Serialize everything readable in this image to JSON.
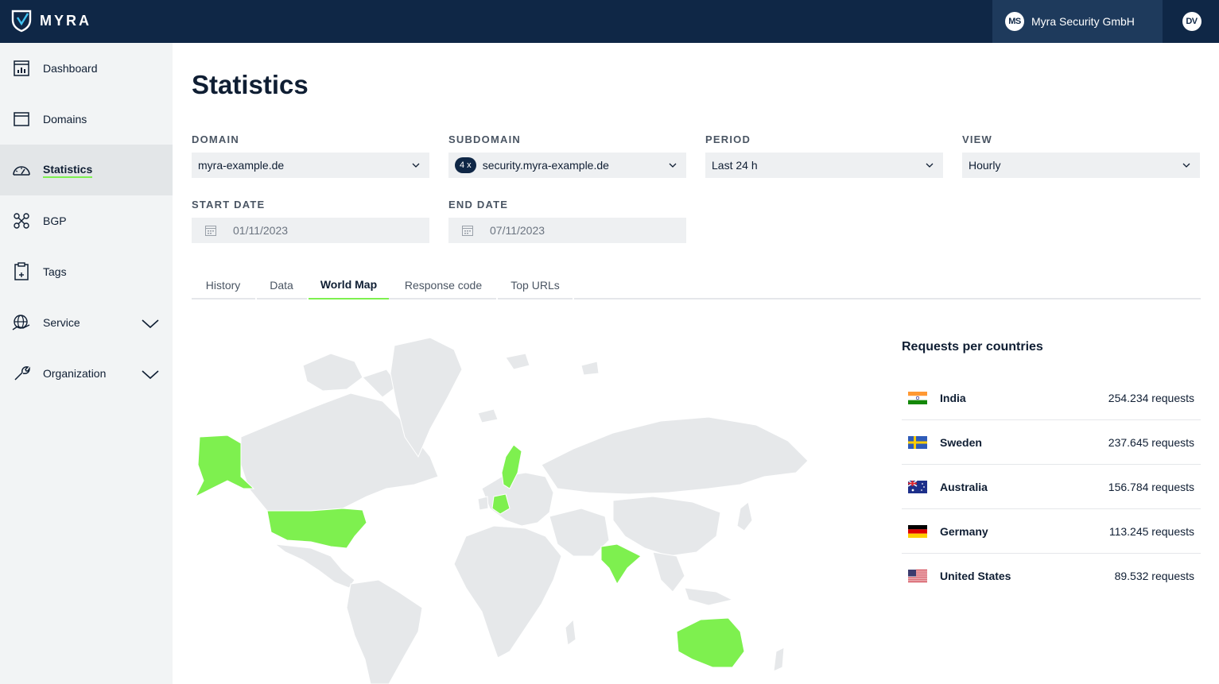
{
  "header": {
    "brand": "MYRA",
    "org": {
      "initials": "MS",
      "name": "Myra Security GmbH"
    },
    "user": {
      "initials": "DV"
    }
  },
  "sidebar": {
    "items": [
      {
        "label": "Dashboard",
        "icon": "dashboard-icon",
        "active": false
      },
      {
        "label": "Domains",
        "icon": "domains-icon",
        "active": false
      },
      {
        "label": "Statistics",
        "icon": "statistics-gauge-icon",
        "active": true
      },
      {
        "label": "BGP",
        "icon": "bgp-network-icon",
        "active": false
      },
      {
        "label": "Tags",
        "icon": "tags-clipboard-icon",
        "active": false
      },
      {
        "label": "Service",
        "icon": "service-globe-icon",
        "active": false,
        "expandable": true
      },
      {
        "label": "Organization",
        "icon": "organization-wrench-icon",
        "active": false,
        "expandable": true
      }
    ]
  },
  "main": {
    "title": "Statistics",
    "filters": {
      "domain": {
        "label": "Domain",
        "value": "myra-example.de"
      },
      "subdomain": {
        "label": "Subdomain",
        "count_badge": "4 x",
        "value": "security.myra-example.de"
      },
      "period": {
        "label": "Period",
        "value": "Last 24 h"
      },
      "view": {
        "label": "View",
        "value": "Hourly"
      },
      "start_date": {
        "label": "Start date",
        "value": "01/11/2023"
      },
      "end_date": {
        "label": "End date",
        "value": "07/11/2023"
      }
    },
    "tabs": [
      {
        "label": "History",
        "active": false
      },
      {
        "label": "Data",
        "active": false
      },
      {
        "label": "World Map",
        "active": true
      },
      {
        "label": "Response code",
        "active": false
      },
      {
        "label": "Top URLs",
        "active": false
      }
    ],
    "map": {
      "highlight_color": "#7ef04f",
      "base_color": "#e6e8ea",
      "highlighted_countries": [
        "United States",
        "Sweden",
        "Germany",
        "India",
        "Australia"
      ]
    },
    "requests": {
      "title": "Requests per countries",
      "rows": [
        {
          "country": "India",
          "value": "254.234 requests",
          "flag": "india-flag"
        },
        {
          "country": "Sweden",
          "value": "237.645 requests",
          "flag": "sweden-flag"
        },
        {
          "country": "Australia",
          "value": "156.784 requests",
          "flag": "australia-flag"
        },
        {
          "country": "Germany",
          "value": "113.245 requests",
          "flag": "germany-flag"
        },
        {
          "country": "United States",
          "value": "89.532 requests",
          "flag": "usa-flag"
        }
      ]
    }
  },
  "colors": {
    "header_bg": "#0f2746",
    "accent": "#7ef04f",
    "sidebar_bg": "#f2f4f5"
  }
}
